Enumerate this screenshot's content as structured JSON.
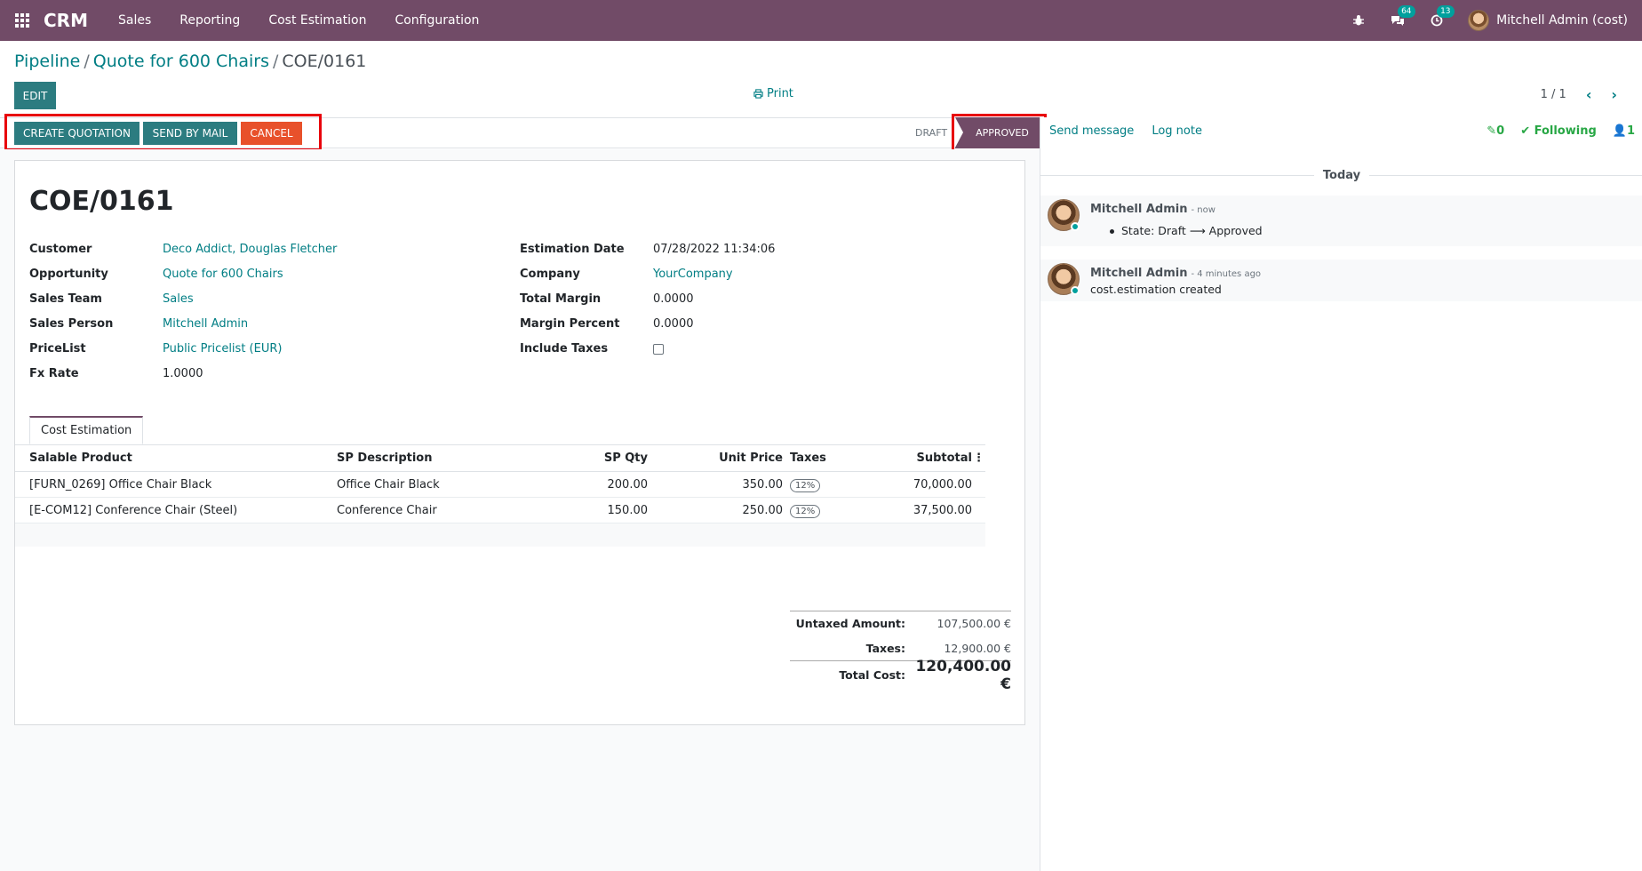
{
  "navbar": {
    "brand": "CRM",
    "menu": [
      "Sales",
      "Reporting",
      "Cost Estimation",
      "Configuration"
    ],
    "messages_count": "64",
    "activities_count": "13",
    "user": "Mitchell Admin (cost)"
  },
  "breadcrumb": {
    "items": [
      "Pipeline",
      "Quote for 600 Chairs"
    ],
    "current": "COE/0161"
  },
  "control": {
    "edit_label": "EDIT",
    "print_label": "Print",
    "pager": "1 / 1"
  },
  "statusbar": {
    "actions": [
      "CREATE QUOTATION",
      "SEND BY MAIL",
      "CANCEL"
    ],
    "stages": {
      "draft": "DRAFT",
      "approved": "APPROVED"
    }
  },
  "form": {
    "title": "COE/0161",
    "left_fields": [
      {
        "label": "Customer",
        "value": "Deco Addict, Douglas Fletcher"
      },
      {
        "label": "Opportunity",
        "value": "Quote for 600 Chairs"
      },
      {
        "label": "Sales Team",
        "value": "Sales"
      },
      {
        "label": "Sales Person",
        "value": "Mitchell Admin"
      },
      {
        "label": "PriceList",
        "value": "Public Pricelist (EUR)"
      },
      {
        "label": "Fx Rate",
        "value": "1.0000"
      }
    ],
    "right_fields": [
      {
        "label": "Estimation Date",
        "value": "07/28/2022 11:34:06"
      },
      {
        "label": "Company",
        "value": "YourCompany"
      },
      {
        "label": "Total Margin",
        "value": "0.0000"
      },
      {
        "label": "Margin Percent",
        "value": "0.0000"
      },
      {
        "label": "Include Taxes",
        "value": ""
      }
    ],
    "tab_label": "Cost Estimation",
    "table": {
      "headers": [
        "Salable Product",
        "SP Description",
        "SP Qty",
        "Unit Price",
        "Taxes",
        "Subtotal"
      ],
      "rows": [
        {
          "product": "[FURN_0269] Office Chair Black",
          "description": "Office Chair Black",
          "qty": "200.00",
          "price": "350.00",
          "tax": "12%",
          "subtotal": "70,000.00"
        },
        {
          "product": "[E-COM12] Conference Chair (Steel)",
          "description": "Conference Chair",
          "qty": "150.00",
          "price": "250.00",
          "tax": "12%",
          "subtotal": "37,500.00"
        }
      ]
    },
    "totals": {
      "untaxed_label": "Untaxed Amount:",
      "untaxed_value": "107,500.00 €",
      "taxes_label": "Taxes:",
      "taxes_value": "12,900.00 €",
      "total_label": "Total Cost:",
      "total_value": "120,400.00 €"
    }
  },
  "chatter": {
    "send_message": "Send message",
    "log_note": "Log note",
    "attachments": "0",
    "following": "Following",
    "followers": "1",
    "date_separator": "Today",
    "messages": [
      {
        "author": "Mitchell Admin",
        "time": "- now",
        "body": "State: Draft ⟶ Approved"
      },
      {
        "author": "Mitchell Admin",
        "time": "- 4 minutes ago",
        "body": "cost.estimation created"
      }
    ]
  }
}
